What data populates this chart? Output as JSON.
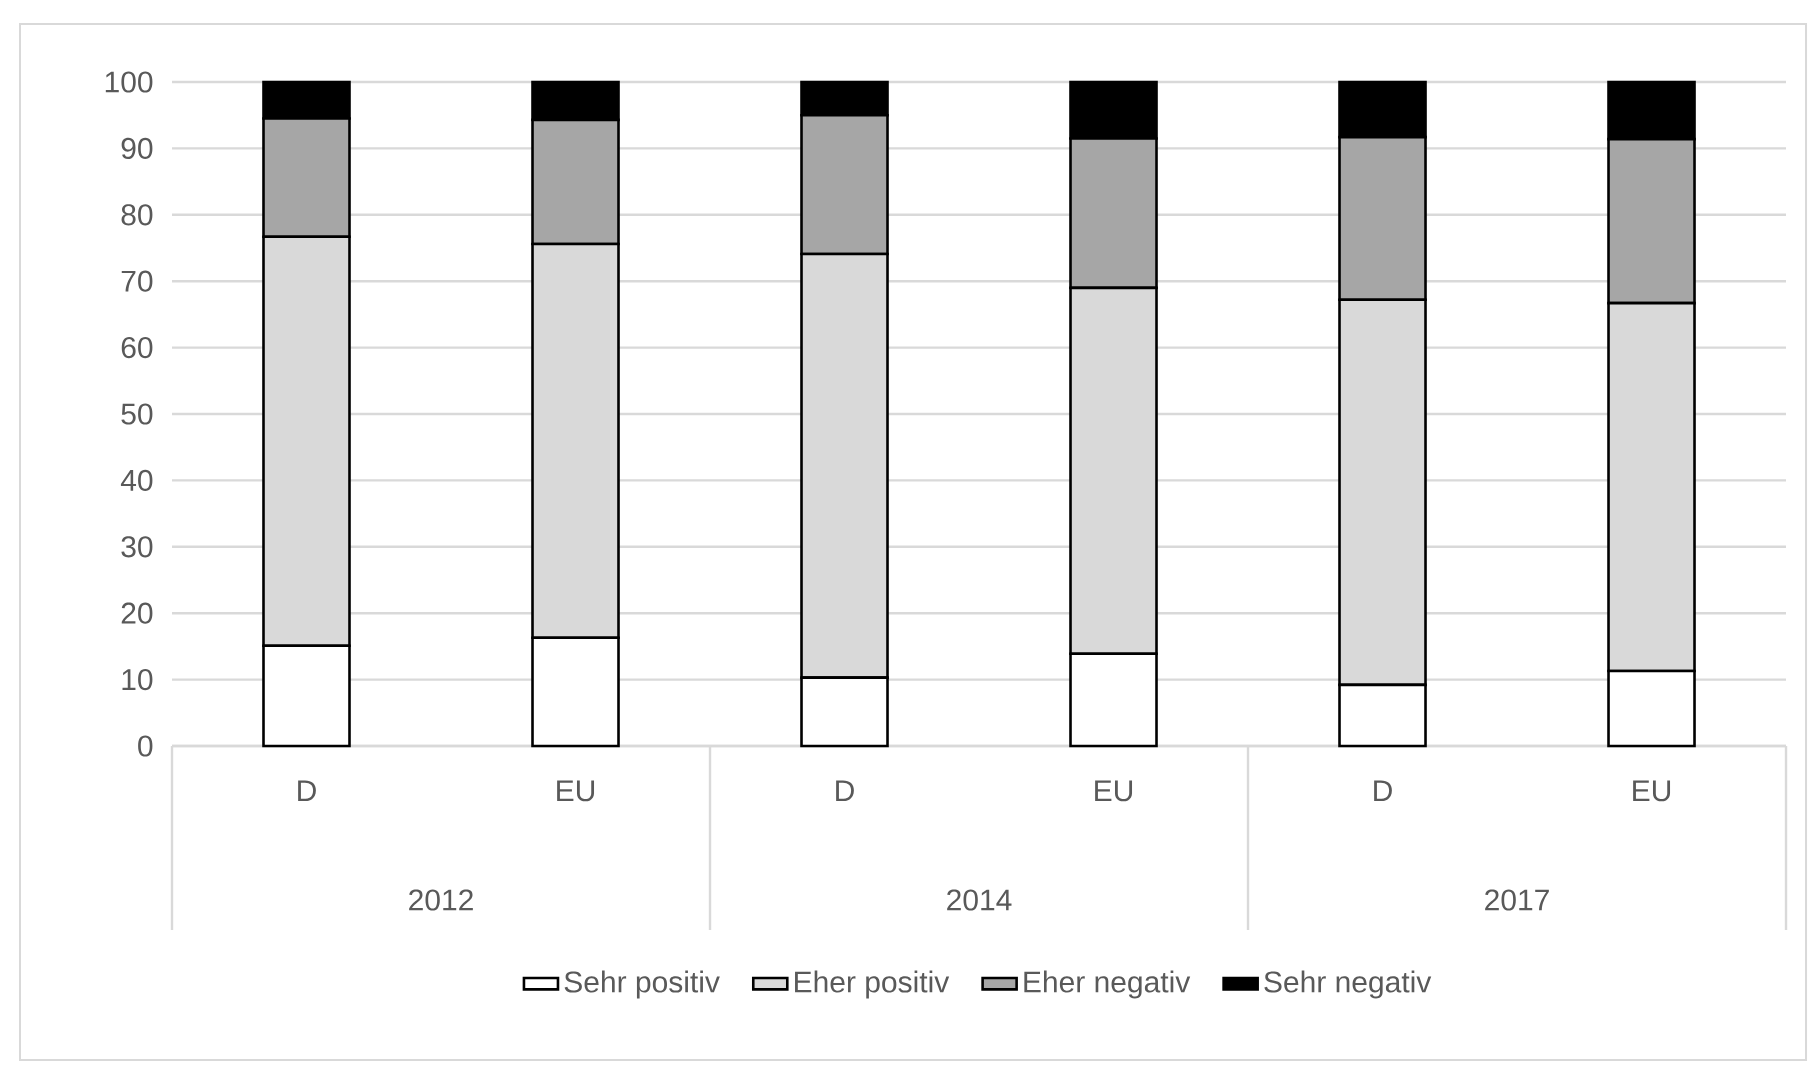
{
  "chart_data": {
    "type": "bar",
    "stacked": true,
    "categories": [
      "D",
      "EU",
      "D",
      "EU",
      "D",
      "EU"
    ],
    "series": [
      {
        "name": "Sehr positiv",
        "color": "#ffffff",
        "values": [
          15.1,
          16.3,
          10.3,
          13.9,
          9.2,
          11.3
        ]
      },
      {
        "name": "Eher positiv",
        "color": "#d9d9d9",
        "values": [
          61.6,
          59.3,
          63.8,
          55.1,
          58.0,
          55.4
        ]
      },
      {
        "name": "Eher negativ",
        "color": "#a6a6a6",
        "values": [
          17.8,
          18.7,
          20.9,
          22.5,
          24.5,
          24.7
        ]
      },
      {
        "name": "Sehr negativ",
        "color": "#000000",
        "values": [
          5.5,
          5.7,
          5.0,
          8.5,
          8.3,
          8.6
        ]
      }
    ],
    "ylim": [
      0,
      100
    ],
    "yticks": [
      0,
      10,
      20,
      30,
      40,
      50,
      60,
      70,
      80,
      90,
      100
    ],
    "grid": "y",
    "legend": "bottom",
    "annotations": [
      "2012",
      "2014",
      "2017"
    ]
  }
}
